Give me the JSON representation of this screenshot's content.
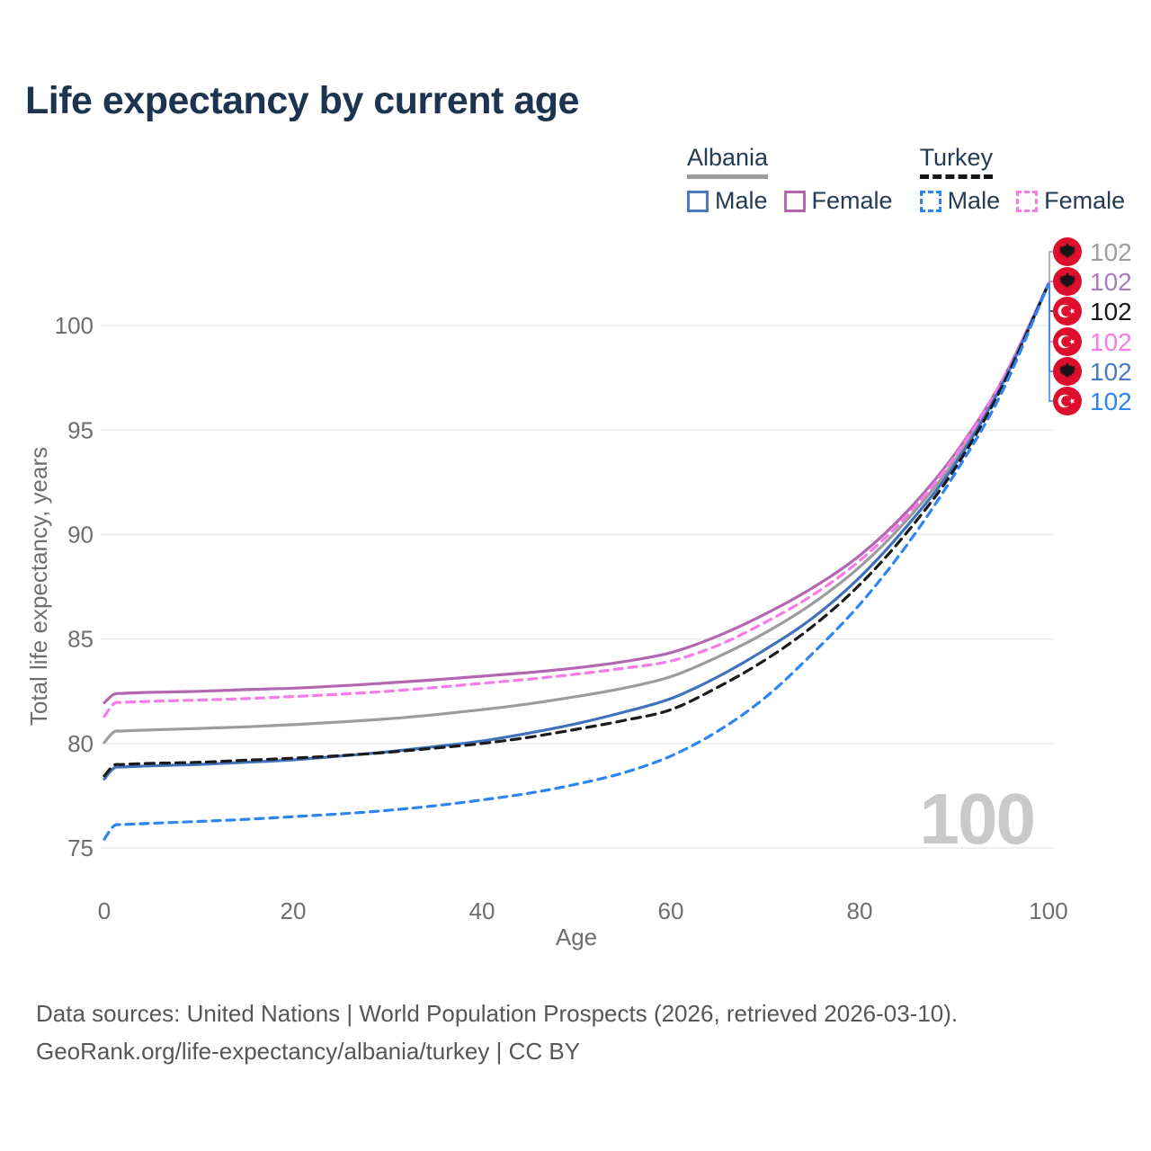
{
  "title": "Life expectancy by current age",
  "age_counter": "100",
  "legend": {
    "groups": [
      {
        "country": "Albania",
        "line_style": "solid",
        "underline_color": "#9c9c9c",
        "items": [
          {
            "label": "Male",
            "color": "#4a7bc2"
          },
          {
            "label": "Female",
            "color": "#b268b0"
          }
        ]
      },
      {
        "country": "Turkey",
        "line_style": "dashed",
        "underline_color": "#161616",
        "items": [
          {
            "label": "Male",
            "color": "#2e85f1"
          },
          {
            "label": "Female",
            "color": "#f879e8"
          }
        ]
      }
    ]
  },
  "footer": {
    "line1": "Data sources: United Nations | World Population Prospects (2026, retrieved 2026-03-10).",
    "line2": "GeoRank.org/life-expectancy/albania/turkey | CC BY"
  },
  "chart_data": {
    "type": "line",
    "title": "Life expectancy by current age",
    "xlabel": "Age",
    "ylabel": "Total life expectancy, years",
    "x_ticks": [
      0,
      20,
      40,
      60,
      80,
      100
    ],
    "y_ticks": [
      75,
      80,
      85,
      90,
      95,
      100
    ],
    "xlim": [
      0,
      100
    ],
    "ylim": [
      75,
      102
    ],
    "grid": "horizontal",
    "legend_position": "top-right",
    "series": [
      {
        "id": "albania-total",
        "name": "Albania",
        "sex": "Total",
        "line": "solid",
        "color": "#9c9c9c",
        "label_color": "#9e9e9e",
        "flag": "albania",
        "end_value": 102,
        "end_label": "102",
        "points": [
          [
            0,
            80.05
          ],
          [
            1,
            80.55
          ],
          [
            2,
            80.6
          ],
          [
            5,
            80.65
          ],
          [
            10,
            80.72
          ],
          [
            15,
            80.8
          ],
          [
            20,
            80.9
          ],
          [
            25,
            81.03
          ],
          [
            30,
            81.18
          ],
          [
            35,
            81.38
          ],
          [
            40,
            81.62
          ],
          [
            45,
            81.9
          ],
          [
            50,
            82.25
          ],
          [
            55,
            82.65
          ],
          [
            60,
            83.2
          ],
          [
            65,
            84.15
          ],
          [
            70,
            85.3
          ],
          [
            75,
            86.7
          ],
          [
            80,
            88.45
          ],
          [
            85,
            90.7
          ],
          [
            90,
            93.5
          ],
          [
            95,
            97.15
          ],
          [
            100,
            102
          ]
        ]
      },
      {
        "id": "albania-female",
        "name": "Albania",
        "sex": "Female",
        "line": "solid",
        "color": "#b268b0",
        "label_color": "#aa7abe",
        "flag": "albania",
        "end_value": 102,
        "end_label": "102",
        "points": [
          [
            0,
            81.95
          ],
          [
            1,
            82.35
          ],
          [
            2,
            82.4
          ],
          [
            5,
            82.45
          ],
          [
            10,
            82.5
          ],
          [
            15,
            82.58
          ],
          [
            20,
            82.65
          ],
          [
            25,
            82.76
          ],
          [
            30,
            82.9
          ],
          [
            35,
            83.05
          ],
          [
            40,
            83.22
          ],
          [
            45,
            83.4
          ],
          [
            50,
            83.62
          ],
          [
            55,
            83.92
          ],
          [
            60,
            84.35
          ],
          [
            65,
            85.15
          ],
          [
            70,
            86.2
          ],
          [
            75,
            87.45
          ],
          [
            80,
            89.0
          ],
          [
            85,
            91.1
          ],
          [
            90,
            93.8
          ],
          [
            95,
            97.3
          ],
          [
            100,
            102
          ]
        ]
      },
      {
        "id": "turkey-total",
        "name": "Turkey",
        "sex": "Total",
        "line": "dashed",
        "color": "#1b1b1b",
        "label_color": "#1a1a1a",
        "flag": "turkey",
        "end_value": 102,
        "end_label": "102",
        "points": [
          [
            0,
            78.45
          ],
          [
            1,
            78.95
          ],
          [
            2,
            79.0
          ],
          [
            5,
            79.05
          ],
          [
            10,
            79.1
          ],
          [
            15,
            79.2
          ],
          [
            20,
            79.3
          ],
          [
            25,
            79.42
          ],
          [
            30,
            79.58
          ],
          [
            35,
            79.78
          ],
          [
            40,
            80.0
          ],
          [
            45,
            80.3
          ],
          [
            50,
            80.68
          ],
          [
            55,
            81.1
          ],
          [
            60,
            81.62
          ],
          [
            65,
            82.7
          ],
          [
            70,
            84.0
          ],
          [
            75,
            85.6
          ],
          [
            80,
            87.6
          ],
          [
            85,
            90.1
          ],
          [
            90,
            93.1
          ],
          [
            95,
            97.0
          ],
          [
            100,
            102
          ]
        ]
      },
      {
        "id": "turkey-female",
        "name": "Turkey",
        "sex": "Female",
        "line": "dashed",
        "color": "#f879e8",
        "label_color": "#f879e8",
        "flag": "turkey",
        "end_value": 102,
        "end_label": "102",
        "points": [
          [
            0,
            81.3
          ],
          [
            1,
            81.9
          ],
          [
            2,
            81.97
          ],
          [
            5,
            82.02
          ],
          [
            10,
            82.08
          ],
          [
            15,
            82.15
          ],
          [
            20,
            82.25
          ],
          [
            25,
            82.36
          ],
          [
            30,
            82.5
          ],
          [
            35,
            82.68
          ],
          [
            40,
            82.88
          ],
          [
            45,
            83.08
          ],
          [
            50,
            83.32
          ],
          [
            55,
            83.6
          ],
          [
            60,
            83.95
          ],
          [
            65,
            84.7
          ],
          [
            70,
            85.8
          ],
          [
            75,
            87.1
          ],
          [
            80,
            88.75
          ],
          [
            85,
            90.9
          ],
          [
            90,
            93.7
          ],
          [
            95,
            97.3
          ],
          [
            100,
            102
          ]
        ]
      },
      {
        "id": "albania-male",
        "name": "Albania",
        "sex": "Male",
        "line": "solid",
        "color": "#3f72ba",
        "label_color": "#4a7bc2",
        "flag": "albania",
        "end_value": 102,
        "end_label": "102",
        "points": [
          [
            0,
            78.3
          ],
          [
            1,
            78.82
          ],
          [
            2,
            78.88
          ],
          [
            5,
            78.93
          ],
          [
            10,
            79.0
          ],
          [
            15,
            79.1
          ],
          [
            20,
            79.22
          ],
          [
            25,
            79.4
          ],
          [
            30,
            79.6
          ],
          [
            35,
            79.85
          ],
          [
            40,
            80.12
          ],
          [
            45,
            80.5
          ],
          [
            50,
            80.95
          ],
          [
            55,
            81.5
          ],
          [
            60,
            82.15
          ],
          [
            65,
            83.2
          ],
          [
            70,
            84.5
          ],
          [
            75,
            86.0
          ],
          [
            80,
            87.95
          ],
          [
            85,
            90.4
          ],
          [
            90,
            93.3
          ],
          [
            95,
            97.1
          ],
          [
            100,
            102
          ]
        ]
      },
      {
        "id": "turkey-male",
        "name": "Turkey",
        "sex": "Male",
        "line": "dashed",
        "color": "#2e85f1",
        "label_color": "#2e85f1",
        "flag": "turkey",
        "end_value": 102,
        "end_label": "102",
        "points": [
          [
            0,
            75.42
          ],
          [
            1,
            76.05
          ],
          [
            2,
            76.12
          ],
          [
            5,
            76.18
          ],
          [
            10,
            76.27
          ],
          [
            15,
            76.37
          ],
          [
            20,
            76.5
          ],
          [
            25,
            76.63
          ],
          [
            30,
            76.8
          ],
          [
            35,
            77.02
          ],
          [
            40,
            77.3
          ],
          [
            45,
            77.62
          ],
          [
            50,
            78.05
          ],
          [
            55,
            78.6
          ],
          [
            60,
            79.4
          ],
          [
            65,
            80.6
          ],
          [
            70,
            82.2
          ],
          [
            75,
            84.3
          ],
          [
            80,
            86.65
          ],
          [
            85,
            89.5
          ],
          [
            90,
            92.85
          ],
          [
            95,
            96.75
          ],
          [
            100,
            102
          ]
        ]
      }
    ]
  }
}
